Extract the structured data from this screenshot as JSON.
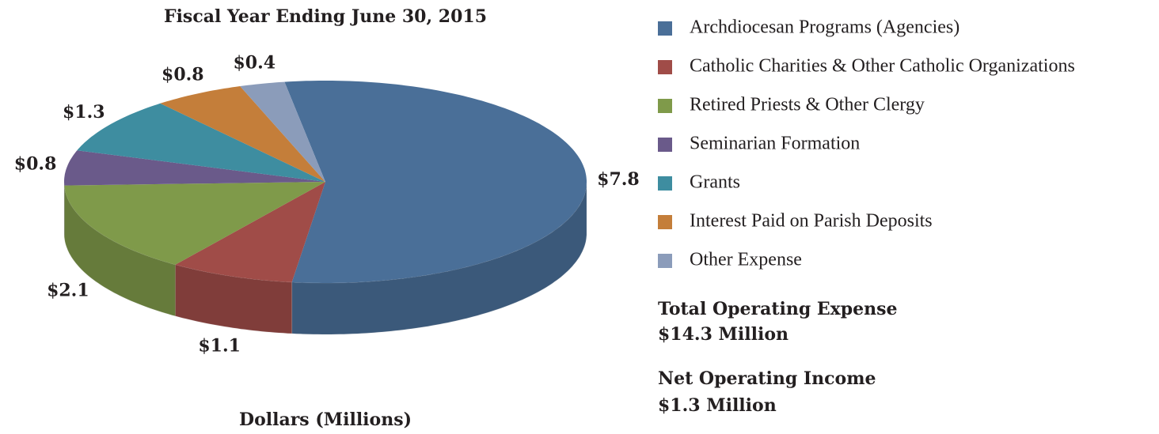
{
  "chart_data": {
    "type": "pie3d",
    "title": "Fiscal Year Ending June 30, 2015",
    "x_label": "Dollars (Millions)",
    "categories": [
      "Archdiocesan Programs (Agencies)",
      "Catholic Charities & Other Catholic Organizations",
      "Retired Priests & Other Clergy",
      "Seminarian Formation",
      "Grants",
      "Interest Paid on Parish Deposits",
      "Other Expense"
    ],
    "values": [
      7.8,
      1.1,
      2.1,
      0.8,
      1.3,
      0.8,
      0.4
    ],
    "value_labels": [
      "$7.8",
      "$1.1",
      "$2.1",
      "$0.8",
      "$1.3",
      "$0.8",
      "$0.4"
    ],
    "colors": [
      "#4a6f98",
      "#a04c48",
      "#7f9a4a",
      "#6a5a8a",
      "#3e8da0",
      "#c47e3a",
      "#8b9cba"
    ],
    "legend": "right",
    "annotations": [
      "Total Operating Expense",
      "$14.3 Million",
      "Net Operating Income",
      "$1.3 Million"
    ]
  }
}
